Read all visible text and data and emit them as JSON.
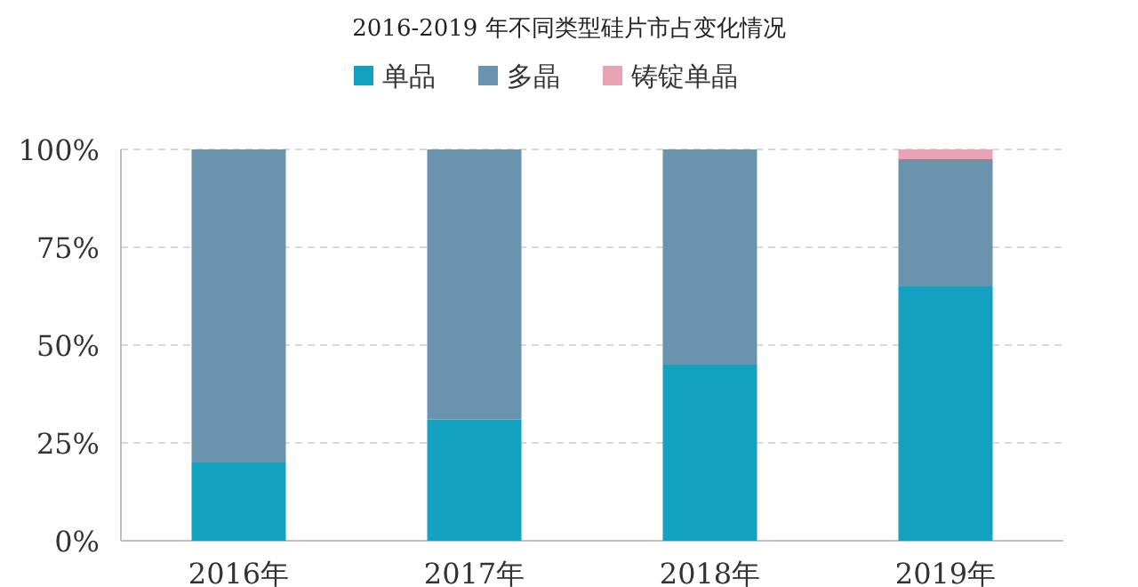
{
  "chart_data": {
    "type": "bar",
    "title": "2016-2019 年不同类型硅片市占变化情况",
    "stacked": true,
    "categories": [
      "2016年",
      "2017年",
      "2018年",
      "2019年"
    ],
    "series": [
      {
        "name": "单品",
        "color": "#12a2c0",
        "values": [
          20,
          31,
          45,
          65
        ]
      },
      {
        "name": "多晶",
        "color": "#6a93ad",
        "values": [
          80,
          69,
          55,
          32.5
        ]
      },
      {
        "name": "铸锭单晶",
        "color": "#e8a3b3",
        "values": [
          null,
          null,
          null,
          2.5
        ]
      }
    ],
    "ylim": [
      0,
      100
    ],
    "yticks": [
      {
        "value": 0,
        "label": "0%"
      },
      {
        "value": 25,
        "label": "25%"
      },
      {
        "value": 50,
        "label": "50%"
      },
      {
        "value": 75,
        "label": "75%"
      },
      {
        "value": 100,
        "label": "100%"
      }
    ],
    "grid": "y",
    "legend": "top"
  }
}
